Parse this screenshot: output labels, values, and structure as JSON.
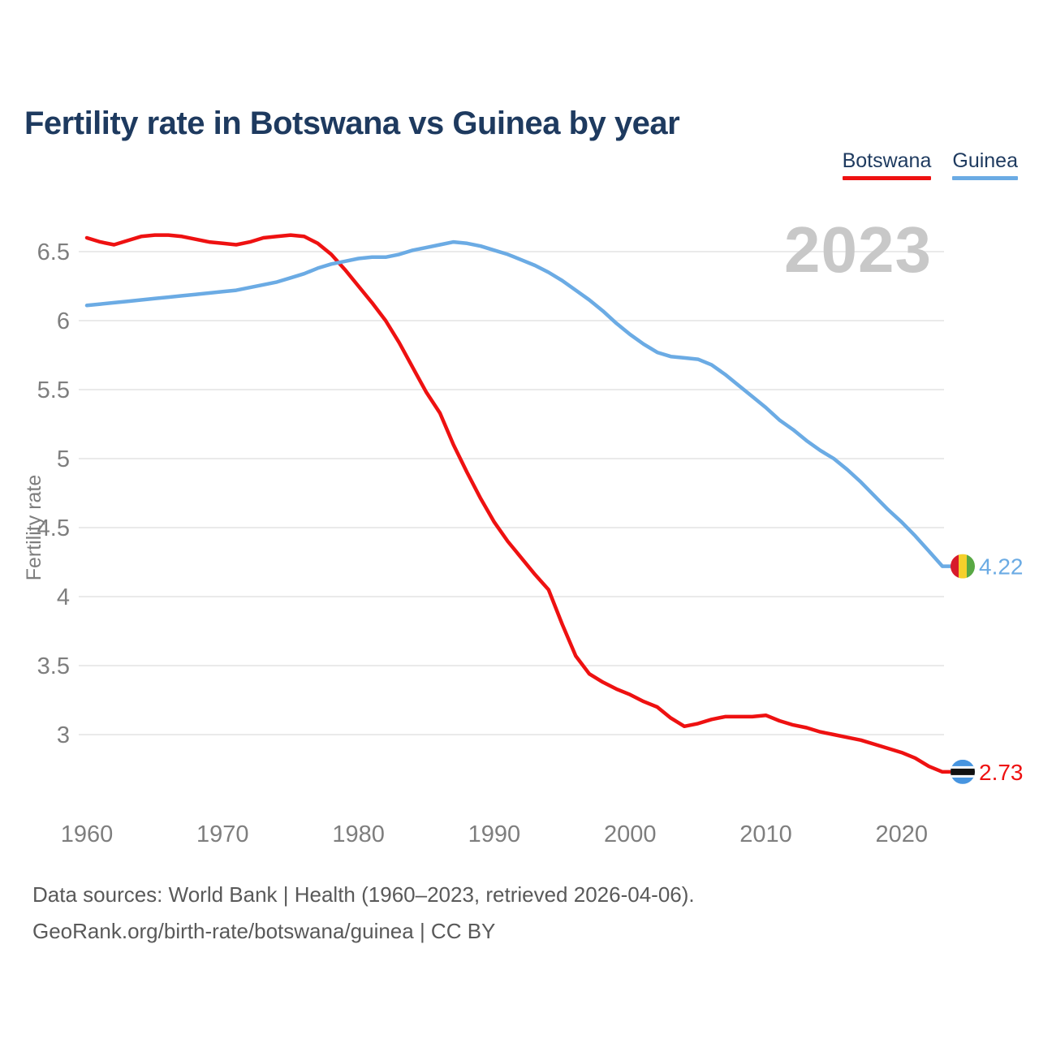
{
  "title": "Fertility rate in Botswana vs Guinea by year",
  "watermark": "2023",
  "legend": [
    {
      "label": "Botswana",
      "color": "#ee1111"
    },
    {
      "label": "Guinea",
      "color": "#6babe4"
    }
  ],
  "y_axis": {
    "label": "Fertility rate",
    "ticks": [
      6.5,
      6,
      5.5,
      5,
      4.5,
      4,
      3.5,
      3
    ]
  },
  "x_axis": {
    "ticks": [
      1960,
      1970,
      1980,
      1990,
      2000,
      2010,
      2020
    ]
  },
  "chart_data": {
    "type": "line",
    "title": "Fertility rate in Botswana vs Guinea by year",
    "xlabel": "",
    "ylabel": "Fertility rate",
    "x_start": 1960,
    "x_end": 2023,
    "xlim": [
      1960,
      2023
    ],
    "ylim": [
      2.6,
      6.75
    ],
    "grid": "horizontal",
    "legend_position": "top-right",
    "x": [
      1960,
      1961,
      1962,
      1963,
      1964,
      1965,
      1966,
      1967,
      1968,
      1969,
      1970,
      1971,
      1972,
      1973,
      1974,
      1975,
      1976,
      1977,
      1978,
      1979,
      1980,
      1981,
      1982,
      1983,
      1984,
      1985,
      1986,
      1987,
      1988,
      1989,
      1990,
      1991,
      1992,
      1993,
      1994,
      1995,
      1996,
      1997,
      1998,
      1999,
      2000,
      2001,
      2002,
      2003,
      2004,
      2005,
      2006,
      2007,
      2008,
      2009,
      2010,
      2011,
      2012,
      2013,
      2014,
      2015,
      2016,
      2017,
      2018,
      2019,
      2020,
      2021,
      2022,
      2023
    ],
    "series": [
      {
        "name": "Botswana",
        "color": "#ee1111",
        "end_label": "2.73",
        "end_value": 2.73,
        "flag": "botswana",
        "values": [
          6.6,
          6.57,
          6.55,
          6.58,
          6.61,
          6.62,
          6.62,
          6.61,
          6.59,
          6.57,
          6.56,
          6.55,
          6.57,
          6.6,
          6.61,
          6.62,
          6.61,
          6.56,
          6.48,
          6.37,
          6.25,
          6.13,
          6.0,
          5.84,
          5.66,
          5.48,
          5.33,
          5.1,
          4.9,
          4.71,
          4.54,
          4.4,
          4.28,
          4.16,
          4.05,
          3.8,
          3.57,
          3.44,
          3.38,
          3.33,
          3.29,
          3.24,
          3.2,
          3.12,
          3.06,
          3.08,
          3.11,
          3.13,
          3.13,
          3.13,
          3.14,
          3.1,
          3.07,
          3.05,
          3.02,
          3.0,
          2.98,
          2.96,
          2.93,
          2.9,
          2.87,
          2.83,
          2.77,
          2.73
        ]
      },
      {
        "name": "Guinea",
        "color": "#6babe4",
        "end_label": "4.22",
        "end_value": 4.22,
        "flag": "guinea",
        "values": [
          6.11,
          6.12,
          6.13,
          6.14,
          6.15,
          6.16,
          6.17,
          6.18,
          6.19,
          6.2,
          6.21,
          6.22,
          6.24,
          6.26,
          6.28,
          6.31,
          6.34,
          6.38,
          6.41,
          6.43,
          6.45,
          6.46,
          6.46,
          6.48,
          6.51,
          6.53,
          6.55,
          6.57,
          6.56,
          6.54,
          6.51,
          6.48,
          6.44,
          6.4,
          6.35,
          6.29,
          6.22,
          6.15,
          6.07,
          5.98,
          5.9,
          5.83,
          5.77,
          5.74,
          5.73,
          5.72,
          5.68,
          5.61,
          5.53,
          5.45,
          5.37,
          5.28,
          5.21,
          5.13,
          5.06,
          5.0,
          4.92,
          4.83,
          4.73,
          4.63,
          4.54,
          4.44,
          4.33,
          4.22
        ]
      }
    ],
    "flag_colors": {
      "guinea": {
        "red": "#d71a2b",
        "yellow": "#f5d02b",
        "green": "#58a844"
      },
      "botswana": {
        "blue": "#4795e0",
        "white": "#ffffff",
        "black": "#111111"
      }
    }
  },
  "style": {
    "grid_color": "#eaeaea",
    "tick_color": "#7e7e7e",
    "watermark_color": "#c8c8c8",
    "title_color": "#1e3a5f",
    "footer_color": "#595959"
  },
  "footer": {
    "line1": "Data sources: World Bank | Health (1960–2023, retrieved 2026-04-06).",
    "line2": "GeoRank.org/birth-rate/botswana/guinea | CC BY"
  }
}
